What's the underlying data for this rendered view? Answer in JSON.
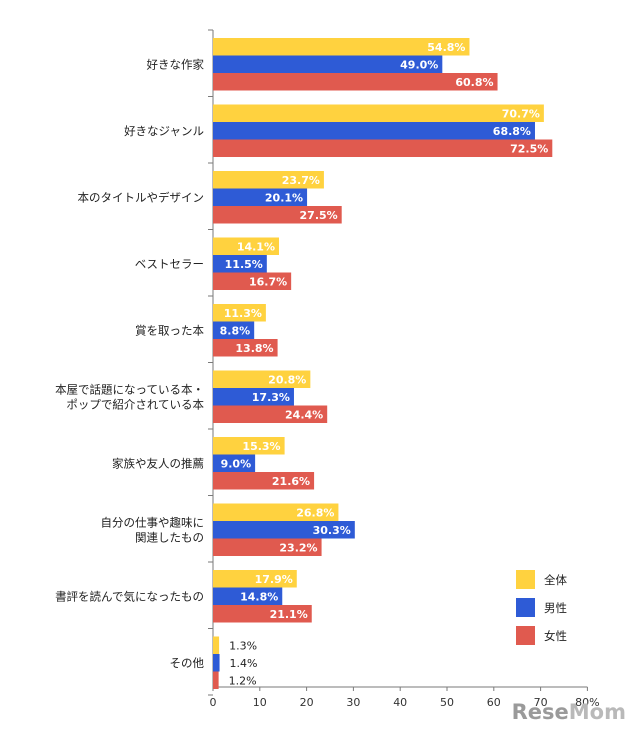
{
  "chart_data": {
    "type": "bar",
    "orientation": "horizontal",
    "categories": [
      "好きな作家",
      "好きなジャンル",
      "本のタイトルやデザイン",
      "ベストセラー",
      "賞を取った本",
      "本屋で話題になっている本・\nポップで紹介されている本",
      "家族や友人の推薦",
      "自分の仕事や趣味に\n関連したもの",
      "書評を読んで気になったもの",
      "その他"
    ],
    "series": [
      {
        "name": "全体",
        "color": "#FFD23F",
        "values": [
          54.8,
          70.7,
          23.7,
          14.1,
          11.3,
          20.8,
          15.3,
          26.8,
          17.9,
          1.3
        ],
        "labels": [
          "54.8%",
          "70.7%",
          "23.7%",
          "14.1%",
          "11.3%",
          "20.8%",
          "15.3%",
          "26.8%",
          "17.9%",
          "1.3%"
        ]
      },
      {
        "name": "男性",
        "color": "#2E5BD6",
        "values": [
          49.0,
          68.8,
          20.1,
          11.5,
          8.8,
          17.3,
          9.0,
          30.3,
          14.8,
          1.4
        ],
        "labels": [
          "49.0%",
          "68.8%",
          "20.1%",
          "11.5%",
          "8.8%",
          "17.3%",
          "9.0%",
          "30.3%",
          "14.8%",
          "1.4%"
        ]
      },
      {
        "name": "女性",
        "color": "#E05A4F",
        "values": [
          60.8,
          72.5,
          27.5,
          16.7,
          13.8,
          24.4,
          21.6,
          23.2,
          21.1,
          1.2
        ],
        "labels": [
          "60.8%",
          "72.5%",
          "27.5%",
          "16.7%",
          "13.8%",
          "24.4%",
          "21.6%",
          "23.2%",
          "21.1%",
          "1.2%"
        ]
      }
    ],
    "xlim": [
      0,
      80
    ],
    "xticks": [
      "0",
      "10",
      "20",
      "30",
      "40",
      "50",
      "60",
      "70",
      "80%"
    ],
    "legend_position": "bottom-right",
    "grid": false
  },
  "watermark": {
    "text_a": "Rese",
    "text_b": "Mom"
  }
}
